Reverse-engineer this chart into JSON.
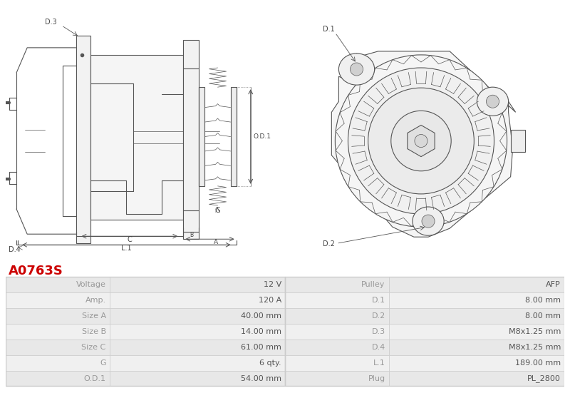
{
  "title": "A0763S",
  "title_color": "#cc0000",
  "bg_color": "#ffffff",
  "lc": "#555555",
  "table": {
    "col1_labels": [
      "Voltage",
      "Amp.",
      "Size A",
      "Size B",
      "Size C",
      "G",
      "O.D.1"
    ],
    "col1_values": [
      "12 V",
      "120 A",
      "40.00 mm",
      "14.00 mm",
      "61.00 mm",
      "6 qty.",
      "54.00 mm"
    ],
    "col2_labels": [
      "Pulley",
      "D.1",
      "D.2",
      "D.3",
      "D.4",
      "L.1",
      "Plug"
    ],
    "col2_values": [
      "AFP",
      "8.00 mm",
      "8.00 mm",
      "M8x1.25 mm",
      "M8x1.25 mm",
      "189.00 mm",
      "PL_2800"
    ]
  },
  "row_colors": [
    "#e8e8e8",
    "#f0f0f0"
  ],
  "label_color": "#999999",
  "value_color": "#555555",
  "border_color": "#cccccc"
}
